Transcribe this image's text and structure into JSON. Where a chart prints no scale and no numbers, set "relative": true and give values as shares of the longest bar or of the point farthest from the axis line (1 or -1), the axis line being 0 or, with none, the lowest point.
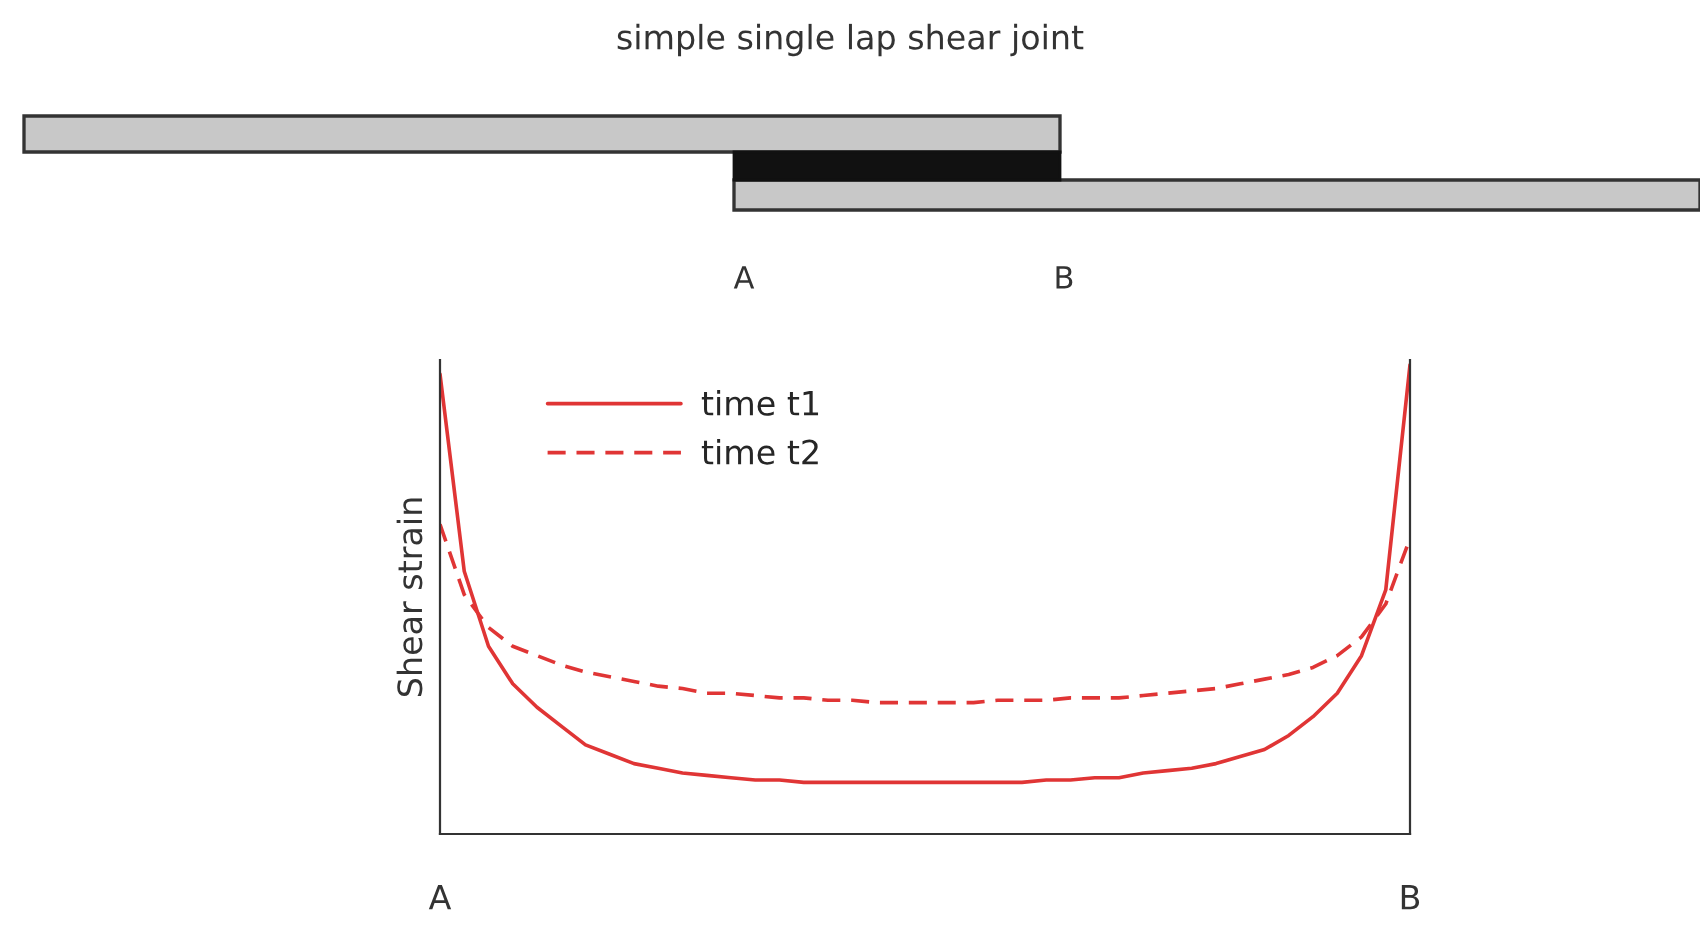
{
  "chart_data": {
    "type": "line",
    "title": "simple single lap shear joint",
    "ylabel": "Shear strain",
    "relative": true,
    "tick_labels": "x",
    "grid": false,
    "legend": "top left",
    "annotations": [
      "A",
      "B"
    ],
    "categories": [
      "A",
      null,
      null,
      null,
      null,
      null,
      null,
      null,
      null,
      null,
      null,
      null,
      null,
      null,
      null,
      null,
      null,
      null,
      null,
      null,
      null,
      null,
      null,
      null,
      null,
      null,
      null,
      null,
      null,
      null,
      null,
      null,
      null,
      null,
      null,
      null,
      null,
      null,
      null,
      null,
      "B"
    ],
    "series": [
      {
        "name": "time t1",
        "color": "#e03535",
        "line_style": "solid",
        "values": [
          0.98,
          0.56,
          0.4,
          0.32,
          0.27,
          0.23,
          0.19,
          0.17,
          0.15,
          0.14,
          0.13,
          0.125,
          0.12,
          0.115,
          0.115,
          0.11,
          0.11,
          0.11,
          0.11,
          0.11,
          0.11,
          0.11,
          0.11,
          0.11,
          0.11,
          0.115,
          0.115,
          0.12,
          0.12,
          0.13,
          0.135,
          0.14,
          0.15,
          0.165,
          0.18,
          0.21,
          0.25,
          0.3,
          0.38,
          0.52,
          1.0
        ]
      },
      {
        "name": "time t2",
        "color": "#e03535",
        "line_style": "dashed",
        "values": [
          0.66,
          0.51,
          0.44,
          0.4,
          0.38,
          0.36,
          0.345,
          0.335,
          0.325,
          0.315,
          0.31,
          0.3,
          0.3,
          0.295,
          0.29,
          0.29,
          0.285,
          0.285,
          0.28,
          0.28,
          0.28,
          0.28,
          0.28,
          0.285,
          0.285,
          0.285,
          0.29,
          0.29,
          0.29,
          0.295,
          0.3,
          0.305,
          0.31,
          0.32,
          0.33,
          0.34,
          0.355,
          0.38,
          0.42,
          0.49,
          0.63
        ]
      }
    ]
  }
}
